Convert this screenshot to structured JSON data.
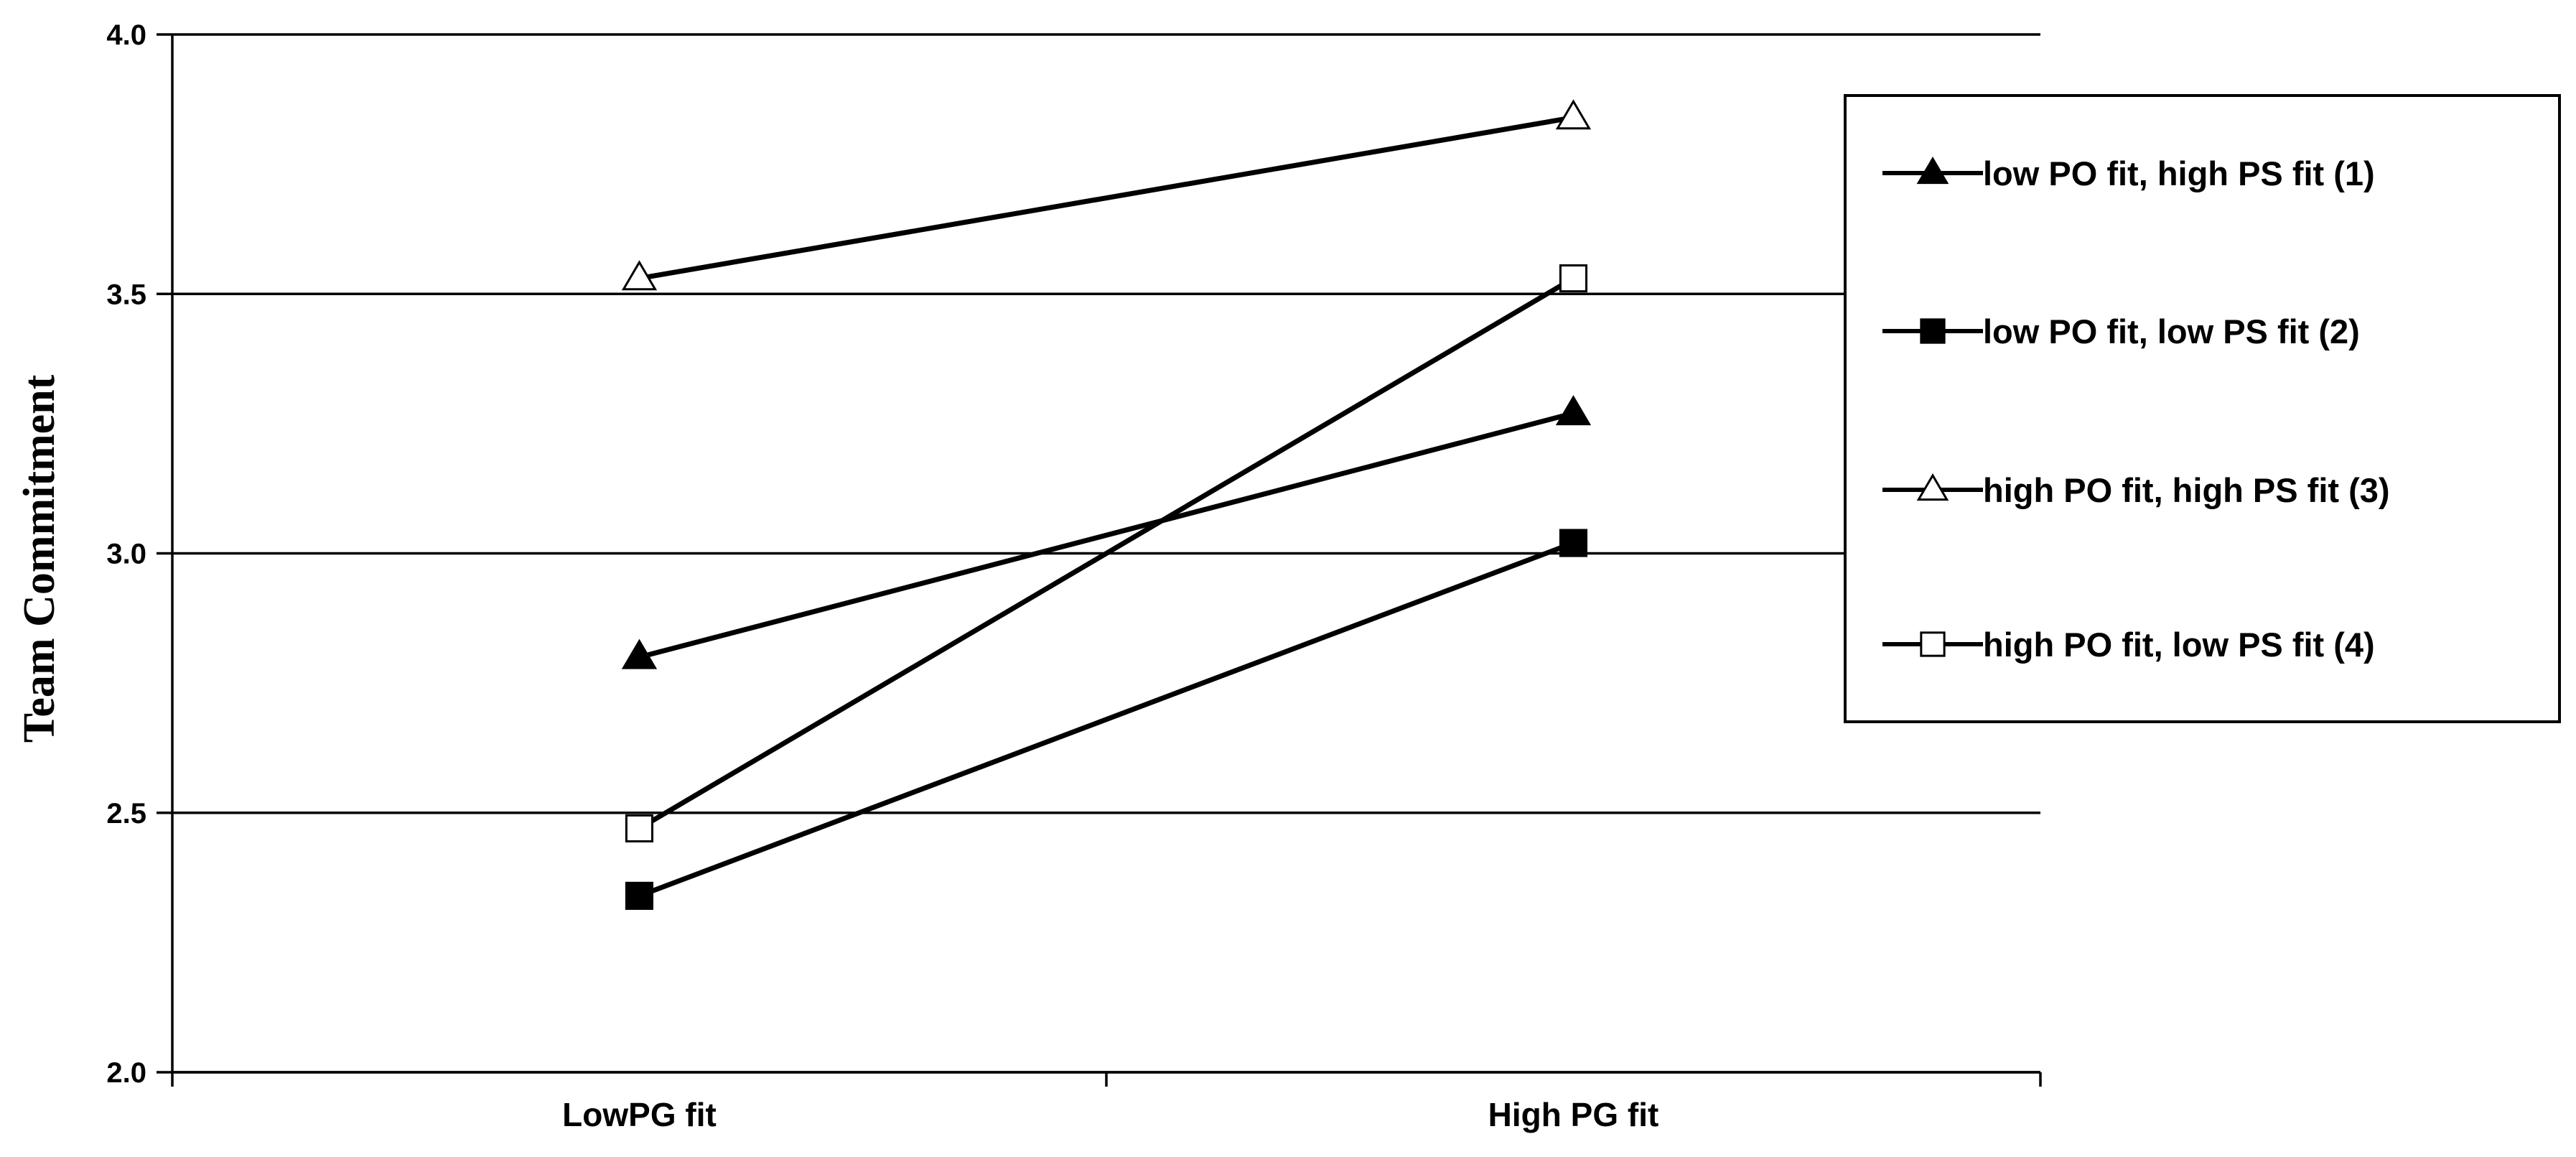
{
  "chart_data": {
    "type": "line",
    "categories": [
      "LowPG fit",
      "High PG fit"
    ],
    "ylabel": "Team Commitment",
    "xlabel": "",
    "title": "",
    "ylim": [
      2.0,
      4.0
    ],
    "yticks": [
      "2.0",
      "2.5",
      "3.0",
      "3.5",
      "4.0"
    ],
    "grid": "horizontal",
    "legend_position": "right",
    "series": [
      {
        "name": "low PO fit, high PS fit (1)",
        "marker": "filled-triangle",
        "values": [
          2.8,
          3.27
        ]
      },
      {
        "name": "low PO fit, low PS fit (2)",
        "marker": "filled-square",
        "values": [
          2.34,
          3.02
        ]
      },
      {
        "name": "high PO fit, high PS fit (3)",
        "marker": "open-triangle",
        "values": [
          3.53,
          3.84
        ]
      },
      {
        "name": "high PO fit, low PS fit (4)",
        "marker": "open-square",
        "values": [
          2.47,
          3.53
        ]
      }
    ],
    "colors": {
      "line": "#000000",
      "background": "#ffffff"
    }
  }
}
